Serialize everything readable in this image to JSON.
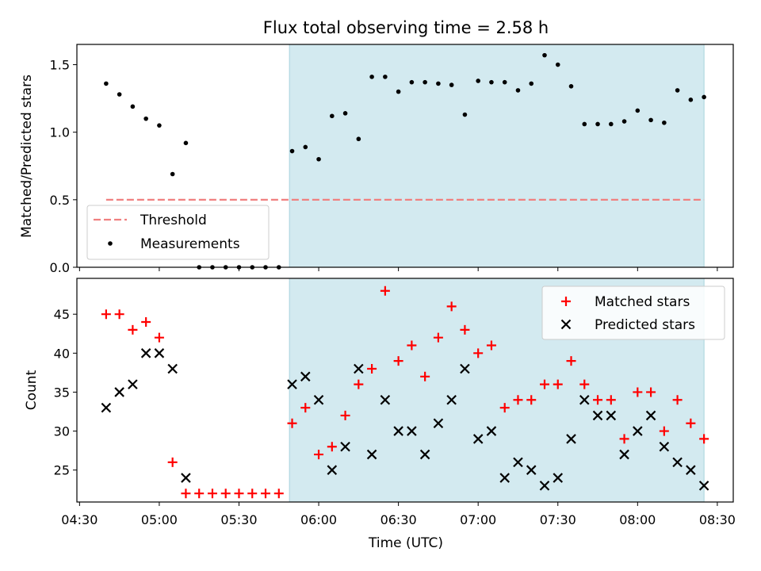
{
  "title": "Flux total observing time = 2.58 h",
  "chart_data": [
    {
      "type": "scatter",
      "ylabel": "Matched/Predicted stars",
      "xlabel": "",
      "xlim": [
        "04:29",
        "08:36"
      ],
      "ylim": [
        0,
        1.65
      ],
      "yticks": [
        0.0,
        0.5,
        1.0,
        1.5
      ],
      "ytick_labels": [
        "0.0",
        "0.5",
        "1.0",
        "1.5"
      ],
      "shaded_span": [
        "05:49",
        "08:25"
      ],
      "shade_color": "#d3eaf0",
      "threshold": {
        "name": "Threshold",
        "value": 0.5,
        "x_start": "04:40",
        "x_end": "08:25",
        "color": "#f08080"
      },
      "legend": {
        "placement": "lower-left",
        "entries": [
          "Threshold",
          "Measurements"
        ]
      },
      "series": [
        {
          "name": "Measurements",
          "marker": "dot",
          "color": "#000000",
          "x": [
            "04:40",
            "04:45",
            "04:50",
            "04:55",
            "05:00",
            "05:05",
            "05:10",
            "05:15",
            "05:20",
            "05:25",
            "05:30",
            "05:35",
            "05:40",
            "05:45",
            "05:50",
            "05:55",
            "06:00",
            "06:05",
            "06:10",
            "06:15",
            "06:20",
            "06:25",
            "06:30",
            "06:35",
            "06:40",
            "06:45",
            "06:50",
            "06:55",
            "07:00",
            "07:05",
            "07:10",
            "07:15",
            "07:20",
            "07:25",
            "07:30",
            "07:35",
            "07:40",
            "07:45",
            "07:50",
            "07:55",
            "08:00",
            "08:05",
            "08:10",
            "08:15",
            "08:20",
            "08:25"
          ],
          "y": [
            1.36,
            1.28,
            1.19,
            1.1,
            1.05,
            0.69,
            0.92,
            0.0,
            0.0,
            0.0,
            0.0,
            0.0,
            0.0,
            0.0,
            0.86,
            0.89,
            0.8,
            1.12,
            1.14,
            0.95,
            1.41,
            1.41,
            1.3,
            1.37,
            1.37,
            1.36,
            1.35,
            1.13,
            1.38,
            1.37,
            1.37,
            1.31,
            1.36,
            1.57,
            1.5,
            1.34,
            1.06,
            1.06,
            1.06,
            1.08,
            1.16,
            1.09,
            1.07,
            1.31,
            1.24,
            1.26
          ]
        }
      ]
    },
    {
      "type": "scatter",
      "xlabel": "Time (UTC)",
      "ylabel": "Count",
      "xlim": [
        "04:29",
        "08:36"
      ],
      "ylim": [
        20.9,
        49.6
      ],
      "yticks": [
        25,
        30,
        35,
        40,
        45
      ],
      "xticks": [
        "04:30",
        "05:00",
        "05:30",
        "06:00",
        "06:30",
        "07:00",
        "07:30",
        "08:00",
        "08:30"
      ],
      "shaded_span": [
        "05:49",
        "08:25"
      ],
      "shade_color": "#d3eaf0",
      "legend": {
        "placement": "top-right",
        "entries": [
          "Matched stars",
          "Predicted stars"
        ]
      },
      "x": [
        "04:40",
        "04:45",
        "04:50",
        "04:55",
        "05:00",
        "05:05",
        "05:10",
        "05:15",
        "05:20",
        "05:25",
        "05:30",
        "05:35",
        "05:40",
        "05:45",
        "05:50",
        "05:55",
        "06:00",
        "06:05",
        "06:10",
        "06:15",
        "06:20",
        "06:25",
        "06:30",
        "06:35",
        "06:40",
        "06:45",
        "06:50",
        "06:55",
        "07:00",
        "07:05",
        "07:10",
        "07:15",
        "07:20",
        "07:25",
        "07:30",
        "07:35",
        "07:40",
        "07:45",
        "07:50",
        "07:55",
        "08:00",
        "08:05",
        "08:10",
        "08:15",
        "08:20",
        "08:25"
      ],
      "series": [
        {
          "name": "Matched stars",
          "marker": "plus",
          "color": "#ff0000",
          "values": [
            45,
            45,
            43,
            44,
            42,
            26,
            22,
            22,
            22,
            22,
            22,
            22,
            22,
            22,
            31,
            33,
            27,
            28,
            32,
            36,
            38,
            48,
            39,
            41,
            37,
            42,
            46,
            43,
            40,
            41,
            33,
            34,
            34,
            36,
            36,
            39,
            36,
            34,
            34,
            29,
            35,
            35,
            30,
            34,
            31,
            29
          ]
        },
        {
          "name": "Predicted stars",
          "marker": "x",
          "color": "#000000",
          "values": [
            33,
            35,
            36,
            40,
            40,
            38,
            24,
            null,
            null,
            null,
            null,
            null,
            null,
            null,
            36,
            37,
            34,
            25,
            28,
            38,
            27,
            34,
            30,
            30,
            27,
            31,
            34,
            38,
            29,
            30,
            24,
            26,
            25,
            23,
            24,
            29,
            34,
            32,
            32,
            27,
            30,
            32,
            28,
            26,
            25,
            23
          ]
        }
      ]
    }
  ]
}
